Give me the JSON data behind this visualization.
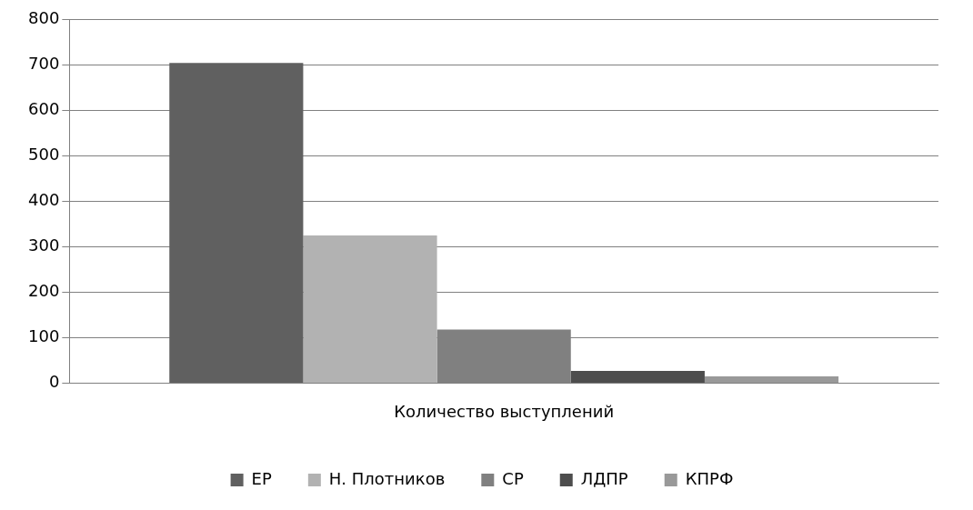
{
  "chart_data": {
    "type": "bar",
    "categories": [
      "Количество выступлений"
    ],
    "series": [
      {
        "name": "ЕР",
        "color": "#606060",
        "values": [
          705
        ]
      },
      {
        "name": "Н. Плотников",
        "color": "#b2b2b2",
        "values": [
          325
        ]
      },
      {
        "name": "СР",
        "color": "#808080",
        "values": [
          118
        ]
      },
      {
        "name": "ЛДПР",
        "color": "#4d4d4d",
        "values": [
          27
        ]
      },
      {
        "name": "КПРФ",
        "color": "#999999",
        "values": [
          15
        ]
      }
    ],
    "ylim": [
      0,
      800
    ],
    "yticks": [
      0,
      100,
      200,
      300,
      400,
      500,
      600,
      700,
      800
    ],
    "grid": "y",
    "legend": "bottom"
  }
}
